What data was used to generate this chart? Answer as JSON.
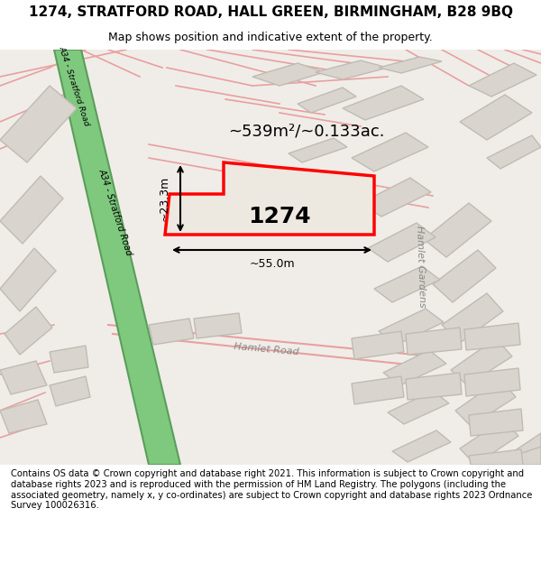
{
  "title": "1274, STRATFORD ROAD, HALL GREEN, BIRMINGHAM, B28 9BQ",
  "subtitle": "Map shows position and indicative extent of the property.",
  "footer": "Contains OS data © Crown copyright and database right 2021. This information is subject to Crown copyright and database rights 2023 and is reproduced with the permission of HM Land Registry. The polygons (including the associated geometry, namely x, y co-ordinates) are subject to Crown copyright and database rights 2023 Ordnance Survey 100026316.",
  "bg_color": "#f0ede8",
  "map_bg": "#f0ede8",
  "road_green_color": "#7fc97f",
  "road_green_stroke": "#5a9e5a",
  "block_color": "#d9d5ce",
  "block_stroke": "#c8c4bc",
  "property_color": "#e8e4de",
  "property_stroke": "#ff0000",
  "dim_line_color": "#000000",
  "street_line_color": "#e8a0a0",
  "text_color": "#333333",
  "road_label": "A34 - Stratford Road",
  "road_label2": "Stratford Road",
  "street_label1": "Hamlet Gardens",
  "street_label2": "Hamlet Road",
  "property_number": "1274",
  "area_text": "~539m²/~0.133ac.",
  "dim_width": "~55.0m",
  "dim_height": "~23.3m",
  "figsize": [
    6.0,
    6.25
  ],
  "dpi": 100
}
